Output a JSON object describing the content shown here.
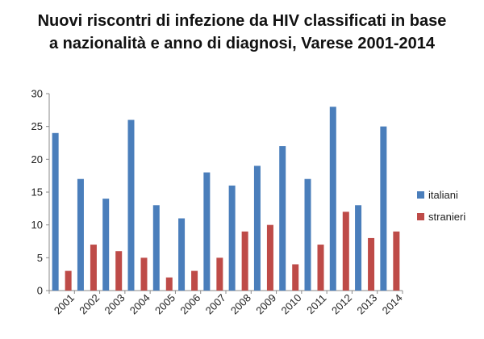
{
  "chart_data": {
    "type": "bar",
    "title_lines": [
      "Nuovi riscontri di infezione da HIV classificati in base",
      "a nazionalità e anno di diagnosi, Varese 2001-2014"
    ],
    "categories": [
      "2001",
      "2002",
      "2003",
      "2004",
      "2005",
      "2006",
      "2007",
      "2008",
      "2009",
      "2010",
      "2011",
      "2012",
      "2013",
      "2014"
    ],
    "series": [
      {
        "name": "italiani",
        "color": "#4a7ebb",
        "values": [
          24,
          17,
          14,
          26,
          13,
          11,
          18,
          16,
          19,
          22,
          17,
          28,
          13,
          25
        ]
      },
      {
        "name": "stranieri",
        "color": "#be4b48",
        "values": [
          3,
          7,
          6,
          5,
          2,
          3,
          5,
          9,
          10,
          4,
          7,
          12,
          8,
          9
        ]
      }
    ],
    "ylim": [
      0,
      30
    ],
    "yticks": [
      0,
      5,
      10,
      15,
      20,
      25,
      30
    ],
    "grid": false,
    "legend_position": "right"
  }
}
